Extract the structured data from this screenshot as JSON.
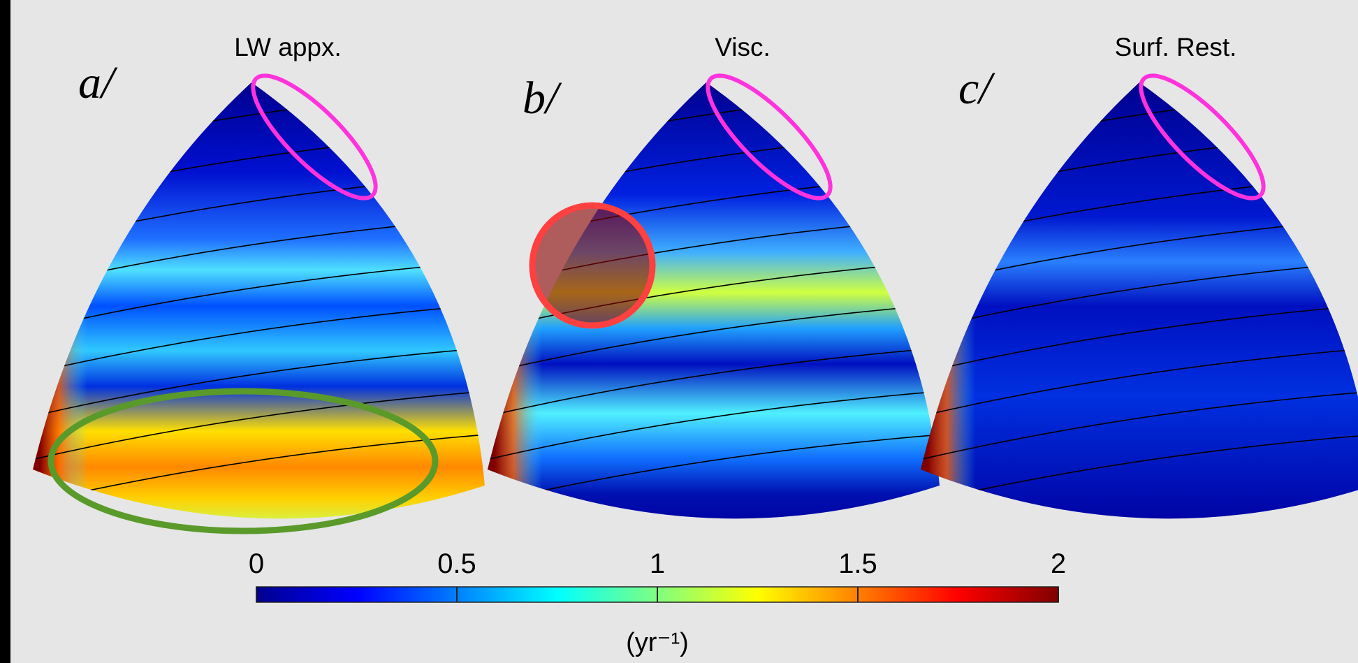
{
  "chart_data": {
    "type": "heatmap-panels",
    "panels": [
      {
        "label": "a/",
        "title": "LW appx."
      },
      {
        "label": "b/",
        "title": "Visc."
      },
      {
        "label": "c/",
        "title": "Surf. Rest."
      }
    ],
    "colorbar": {
      "colormap": "jet",
      "clim": [
        0,
        2
      ],
      "ticks": [
        0,
        0.5,
        1,
        1.5,
        2
      ],
      "label": "(yr⁻¹)"
    }
  }
}
